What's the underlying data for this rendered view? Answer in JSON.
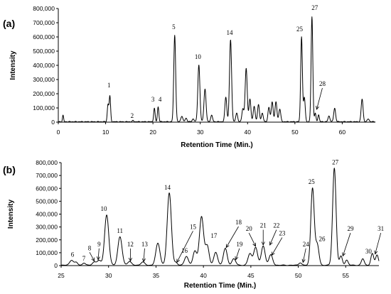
{
  "chart_data": [
    {
      "type": "line",
      "panel_label": "(a)",
      "xlabel": "Retention Time (Min.)",
      "ylabel": "Intensity",
      "xlim": [
        0,
        67
      ],
      "ylim": [
        0,
        800000
      ],
      "x_ticks": [
        0,
        10,
        20,
        30,
        40,
        50,
        60
      ],
      "x_tick_labels": [
        "0",
        "10",
        "20",
        "30",
        "40",
        "50",
        "60"
      ],
      "y_ticks": [
        0,
        100000,
        200000,
        300000,
        400000,
        500000,
        600000,
        700000,
        800000
      ],
      "y_tick_labels": [
        "0",
        "100,000",
        "200,000",
        "300,000",
        "400,000",
        "500,000",
        "600,000",
        "700,000",
        "800,000"
      ],
      "peaks": [
        [
          1.0,
          45000,
          0.12
        ],
        [
          10.5,
          120000,
          0.15
        ],
        [
          10.9,
          180000,
          0.15
        ],
        [
          15.8,
          8000,
          0.15
        ],
        [
          20.3,
          95000,
          0.15
        ],
        [
          21.1,
          105000,
          0.15
        ],
        [
          24.6,
          610000,
          0.2
        ],
        [
          26.1,
          40000,
          0.2
        ],
        [
          27.0,
          25000,
          0.2
        ],
        [
          28.5,
          20000,
          0.2
        ],
        [
          29.7,
          400000,
          0.22
        ],
        [
          31.0,
          230000,
          0.22
        ],
        [
          32.4,
          45000,
          0.2
        ],
        [
          35.4,
          175000,
          0.2
        ],
        [
          36.4,
          575000,
          0.22
        ],
        [
          37.7,
          60000,
          0.2
        ],
        [
          39.0,
          90000,
          0.2
        ],
        [
          39.7,
          375000,
          0.22
        ],
        [
          40.5,
          160000,
          0.2
        ],
        [
          41.4,
          110000,
          0.2
        ],
        [
          42.3,
          120000,
          0.2
        ],
        [
          43.1,
          60000,
          0.2
        ],
        [
          44.5,
          100000,
          0.2
        ],
        [
          45.2,
          140000,
          0.2
        ],
        [
          46.0,
          140000,
          0.2
        ],
        [
          46.8,
          90000,
          0.2
        ],
        [
          51.4,
          600000,
          0.18
        ],
        [
          52.0,
          170000,
          0.18
        ],
        [
          53.6,
          740000,
          0.18
        ],
        [
          54.3,
          60000,
          0.15
        ],
        [
          55.0,
          50000,
          0.15
        ],
        [
          57.2,
          40000,
          0.2
        ],
        [
          58.4,
          95000,
          0.2
        ],
        [
          64.2,
          160000,
          0.2
        ],
        [
          65.5,
          20000,
          0.2
        ]
      ],
      "labels": [
        {
          "text": "1",
          "x": 10.7,
          "y": 245000
        },
        {
          "text": "2",
          "x": 15.6,
          "y": 30000
        },
        {
          "text": "3",
          "x": 20.0,
          "y": 145000
        },
        {
          "text": "4",
          "x": 21.5,
          "y": 145000
        },
        {
          "text": "5",
          "x": 24.4,
          "y": 655000
        },
        {
          "text": "10",
          "x": 29.5,
          "y": 445000
        },
        {
          "text": "14",
          "x": 36.2,
          "y": 615000
        },
        {
          "text": "25",
          "x": 51.0,
          "y": 640000
        },
        {
          "text": "27",
          "x": 54.2,
          "y": 790000
        },
        {
          "text": "28",
          "x": 55.8,
          "y": 255000,
          "arrow_to": [
            54.6,
            90000
          ]
        }
      ]
    },
    {
      "type": "line",
      "panel_label": "(b)",
      "xlabel": "Retention Time (Min.)",
      "ylabel": "Intensity",
      "xlim": [
        25,
        58.5
      ],
      "ylim": [
        0,
        800000
      ],
      "x_ticks": [
        25,
        30,
        35,
        40,
        45,
        50,
        55
      ],
      "x_tick_labels": [
        "25",
        "30",
        "35",
        "40",
        "45",
        "50",
        "55"
      ],
      "y_ticks": [
        0,
        100000,
        200000,
        300000,
        400000,
        500000,
        600000,
        700000,
        800000
      ],
      "y_tick_labels": [
        "0",
        "100,000",
        "200,000",
        "300,000",
        "400,000",
        "500,000",
        "600,000",
        "700,000",
        "800,000"
      ],
      "peaks": [
        [
          26.1,
          40000,
          0.2
        ],
        [
          26.6,
          22000,
          0.15
        ],
        [
          27.4,
          18000,
          0.15
        ],
        [
          28.5,
          25000,
          0.2
        ],
        [
          29.0,
          35000,
          0.2
        ],
        [
          29.8,
          390000,
          0.22
        ],
        [
          31.2,
          220000,
          0.22
        ],
        [
          32.2,
          30000,
          0.2
        ],
        [
          33.6,
          25000,
          0.2
        ],
        [
          35.2,
          170000,
          0.22
        ],
        [
          36.4,
          560000,
          0.22
        ],
        [
          37.1,
          20000,
          0.15
        ],
        [
          38.2,
          70000,
          0.2
        ],
        [
          39.1,
          110000,
          0.2
        ],
        [
          39.8,
          375000,
          0.22
        ],
        [
          40.4,
          150000,
          0.2
        ],
        [
          41.3,
          100000,
          0.2
        ],
        [
          42.3,
          130000,
          0.2
        ],
        [
          43.2,
          50000,
          0.2
        ],
        [
          44.9,
          90000,
          0.2
        ],
        [
          45.5,
          140000,
          0.2
        ],
        [
          46.3,
          150000,
          0.2
        ],
        [
          47.1,
          80000,
          0.2
        ],
        [
          50.2,
          20000,
          0.15
        ],
        [
          51.5,
          600000,
          0.18
        ],
        [
          52.0,
          160000,
          0.18
        ],
        [
          53.8,
          755000,
          0.18
        ],
        [
          54.5,
          70000,
          0.15
        ],
        [
          55.1,
          40000,
          0.15
        ],
        [
          56.8,
          50000,
          0.15
        ],
        [
          57.8,
          90000,
          0.15
        ],
        [
          58.3,
          80000,
          0.15
        ]
      ],
      "labels": [
        {
          "text": "6",
          "x": 26.2,
          "y": 70000
        },
        {
          "text": "7",
          "x": 27.4,
          "y": 40000
        },
        {
          "text": "8",
          "x": 28.0,
          "y": 120000,
          "arrow_to": [
            28.5,
            35000
          ]
        },
        {
          "text": "9",
          "x": 29.0,
          "y": 150000,
          "arrow_to": [
            28.9,
            45000
          ]
        },
        {
          "text": "10",
          "x": 29.5,
          "y": 425000
        },
        {
          "text": "11",
          "x": 31.2,
          "y": 255000
        },
        {
          "text": "12",
          "x": 32.3,
          "y": 150000,
          "arrow_to": [
            32.3,
            35000
          ]
        },
        {
          "text": "13",
          "x": 33.8,
          "y": 150000,
          "arrow_to": [
            33.7,
            30000
          ]
        },
        {
          "text": "14",
          "x": 36.2,
          "y": 590000
        },
        {
          "text": "15",
          "x": 38.9,
          "y": 285000,
          "arrow_to": [
            37.2,
            25000
          ]
        },
        {
          "text": "16",
          "x": 38.0,
          "y": 100000
        },
        {
          "text": "17",
          "x": 41.1,
          "y": 215000
        },
        {
          "text": "18",
          "x": 43.7,
          "y": 320000,
          "arrow_to": [
            42.4,
            140000
          ]
        },
        {
          "text": "19",
          "x": 43.8,
          "y": 150000,
          "arrow_to": [
            43.4,
            45000
          ]
        },
        {
          "text": "20",
          "x": 44.8,
          "y": 270000,
          "arrow_to": [
            45.5,
            150000
          ]
        },
        {
          "text": "21",
          "x": 46.3,
          "y": 295000,
          "arrow_to": [
            46.3,
            160000
          ]
        },
        {
          "text": "22",
          "x": 47.7,
          "y": 295000,
          "arrow_to": [
            47.0,
            160000
          ]
        },
        {
          "text": "23",
          "x": 48.3,
          "y": 235000,
          "arrow_to": [
            47.2,
            80000
          ]
        },
        {
          "text": "24",
          "x": 50.8,
          "y": 150000,
          "arrow_to": [
            50.5,
            25000
          ]
        },
        {
          "text": "25",
          "x": 51.4,
          "y": 635000
        },
        {
          "text": "26",
          "x": 52.5,
          "y": 190000
        },
        {
          "text": "27",
          "x": 53.9,
          "y": 785000
        },
        {
          "text": "29",
          "x": 55.5,
          "y": 270000,
          "arrow_to": [
            54.7,
            75000
          ]
        },
        {
          "text": "30",
          "x": 57.4,
          "y": 95000
        },
        {
          "text": "31",
          "x": 58.7,
          "y": 270000,
          "arrow_to": [
            58.1,
            90000
          ]
        }
      ]
    }
  ]
}
